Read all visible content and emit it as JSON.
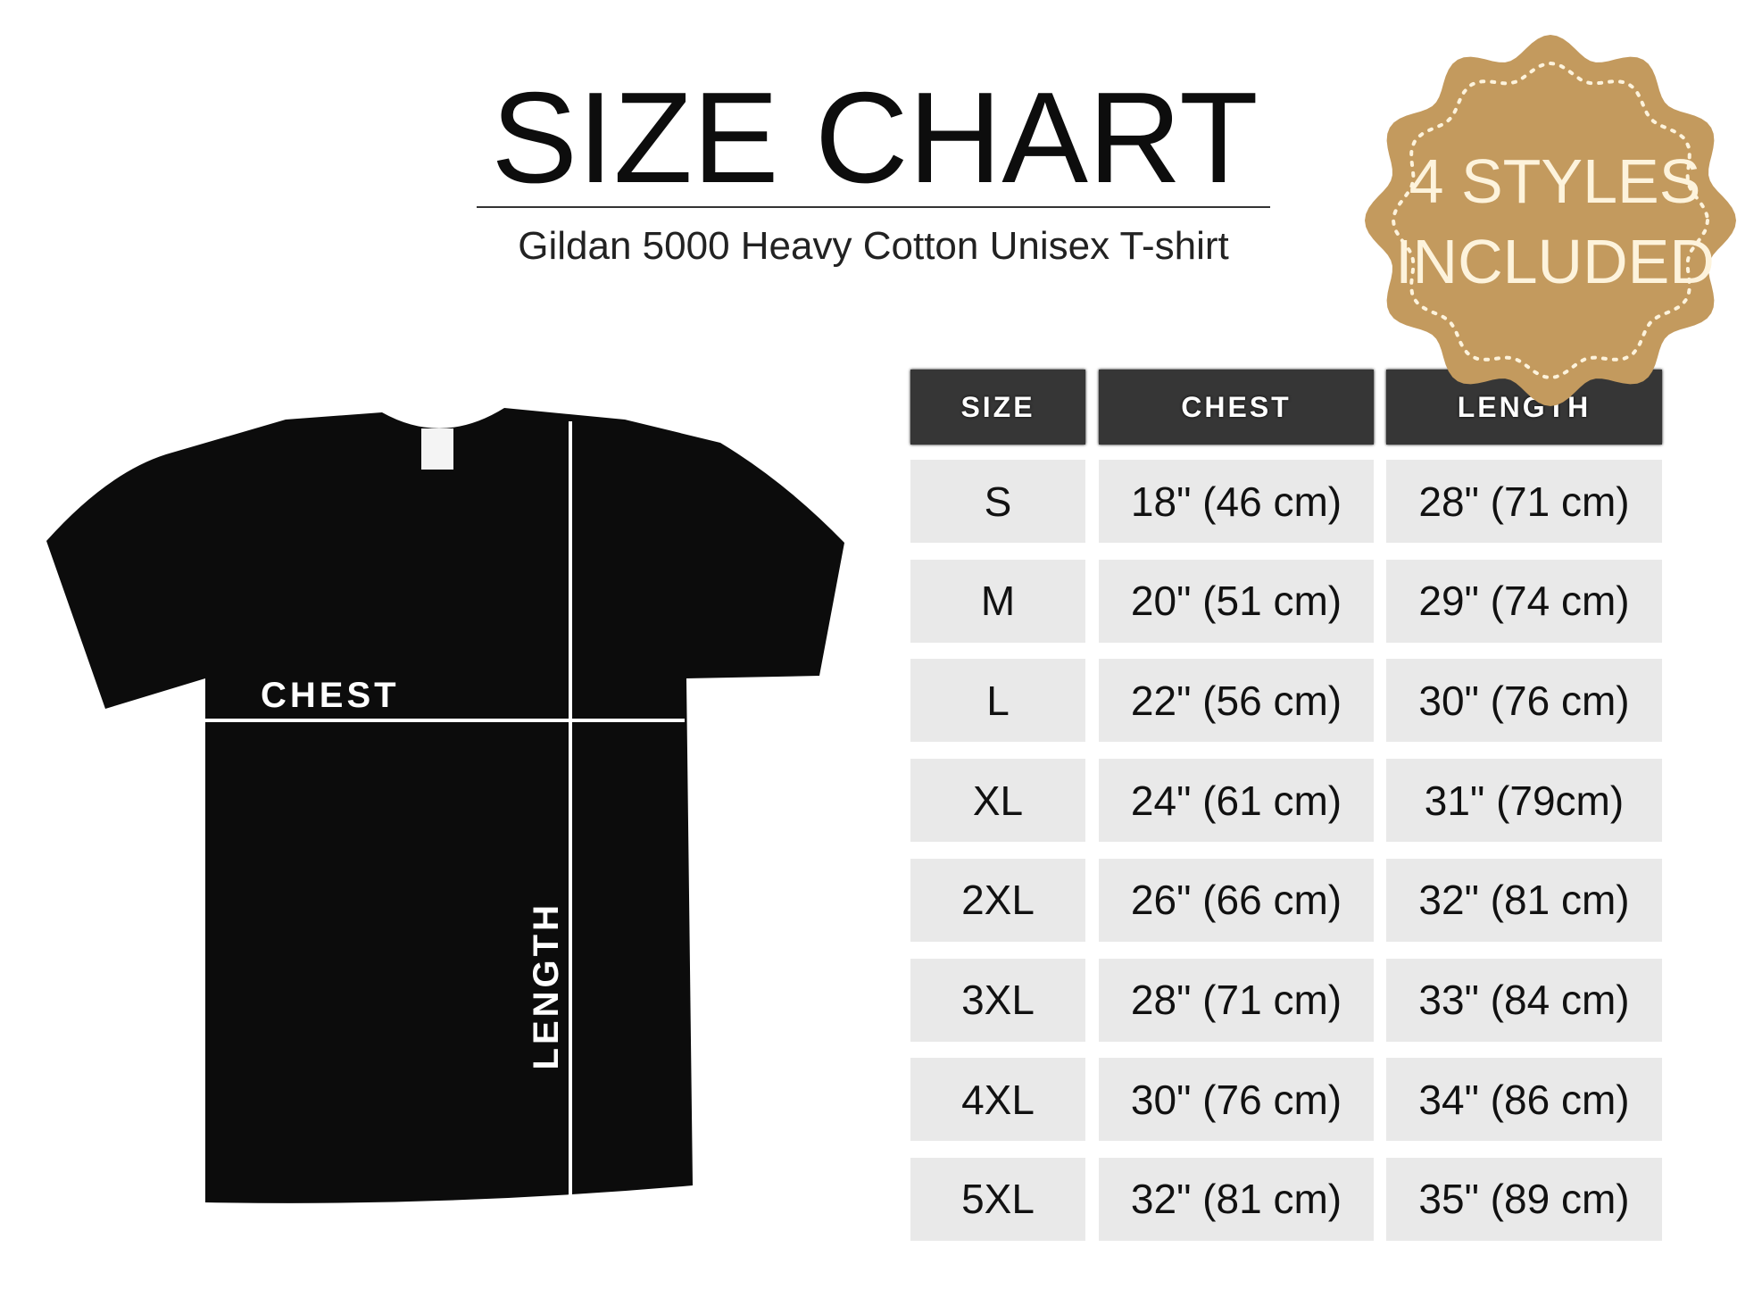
{
  "header": {
    "title": "SIZE CHART",
    "subtitle": "Gildan 5000 Heavy Cotton Unisex T-shirt"
  },
  "badge": {
    "line1": "4 STYLES",
    "line2": "INCLUDED",
    "color": "#c39a5e",
    "text_color": "#fdf3dc"
  },
  "diagram": {
    "chest_label": "CHEST",
    "length_label": "LENGTH",
    "shirt_color": "#0c0c0c"
  },
  "table": {
    "headers": [
      "SIZE",
      "CHEST",
      "LENGTH"
    ],
    "rows": [
      [
        "S",
        "18\" (46 cm)",
        "28\" (71 cm)"
      ],
      [
        "M",
        "20\" (51 cm)",
        "29\" (74 cm)"
      ],
      [
        "L",
        "22\" (56 cm)",
        "30\" (76 cm)"
      ],
      [
        "XL",
        "24\" (61 cm)",
        "31\" (79cm)"
      ],
      [
        "2XL",
        "26\" (66 cm)",
        "32\" (81 cm)"
      ],
      [
        "3XL",
        "28\" (71 cm)",
        "33\" (84 cm)"
      ],
      [
        "4XL",
        "30\" (76 cm)",
        "34\" (86 cm)"
      ],
      [
        "5XL",
        "32\" (81 cm)",
        "35\" (89 cm)"
      ]
    ],
    "header_color": "#363636",
    "cell_color": "#e9e9e9"
  }
}
